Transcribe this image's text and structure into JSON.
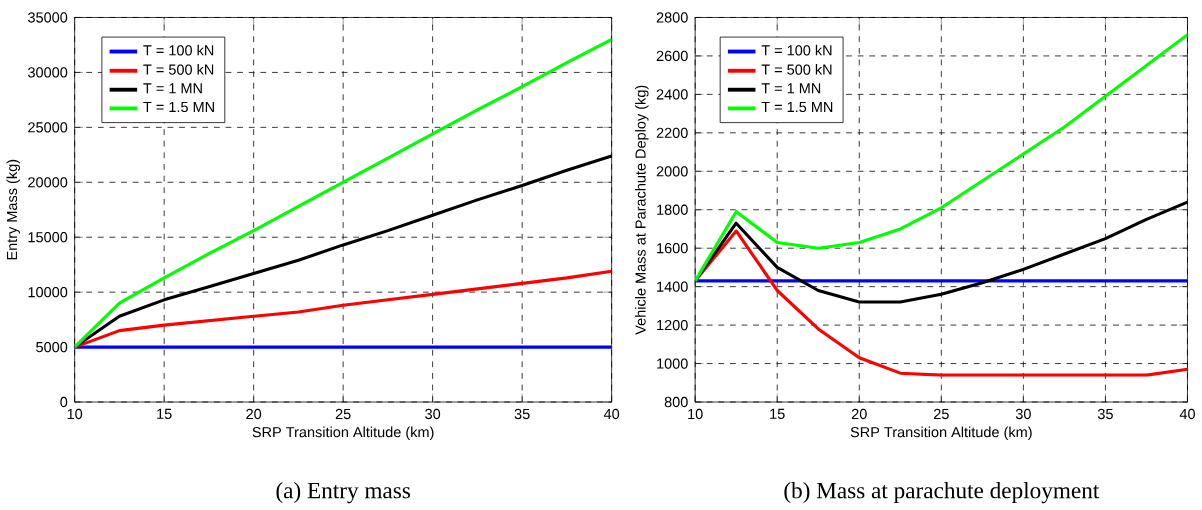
{
  "chart_data": [
    {
      "type": "line",
      "title": "(a) Entry mass",
      "xlabel": "SRP Transition Altitude (km)",
      "ylabel": "Entry Mass (kg)",
      "x": [
        10,
        12.5,
        15,
        17.5,
        20,
        22.5,
        25,
        27.5,
        30,
        32.5,
        35,
        37.5,
        40
      ],
      "series": [
        {
          "name": "T = 100 kN",
          "color": "#0000ff",
          "values": [
            5000,
            5000,
            5000,
            5000,
            5000,
            5000,
            5000,
            5000,
            5000,
            5000,
            5000,
            5000,
            5000
          ]
        },
        {
          "name": "T = 500 kN",
          "color": "#ff0000",
          "values": [
            5000,
            6500,
            7000,
            7400,
            7800,
            8200,
            8800,
            9300,
            9800,
            10300,
            10800,
            11300,
            11900
          ]
        },
        {
          "name": "T = 1 MN",
          "color": "#000000",
          "values": [
            5000,
            7800,
            9300,
            10500,
            11700,
            12900,
            14300,
            15600,
            17000,
            18400,
            19700,
            21100,
            22400
          ]
        },
        {
          "name": "T = 1.5 MN",
          "color": "#00ff00",
          "values": [
            5000,
            9000,
            11300,
            13500,
            15600,
            17800,
            20000,
            22200,
            24400,
            26600,
            28700,
            30900,
            33000
          ]
        }
      ],
      "xlim": [
        10,
        40
      ],
      "xticks": [
        10,
        15,
        20,
        25,
        30,
        35,
        40
      ],
      "ylim": [
        0,
        35000
      ],
      "yticks": [
        0,
        5000,
        10000,
        15000,
        20000,
        25000,
        30000,
        35000
      ],
      "grid": true,
      "legend": "top left",
      "line_style": "solid"
    },
    {
      "type": "line",
      "title": "(b) Mass at parachute deployment",
      "xlabel": "SRP Transition Altitude (km)",
      "ylabel": "Vehicle Mass at Parachute Deploy (kg)",
      "x": [
        10,
        12.5,
        15,
        17.5,
        20,
        22.5,
        25,
        27.5,
        30,
        32.5,
        35,
        37.5,
        40
      ],
      "series": [
        {
          "name": "T = 100 kN",
          "color": "#0000ff",
          "values": [
            1430,
            1430,
            1430,
            1430,
            1430,
            1430,
            1430,
            1430,
            1430,
            1430,
            1430,
            1430,
            1430
          ]
        },
        {
          "name": "T = 500 kN",
          "color": "#ff0000",
          "values": [
            1430,
            1690,
            1380,
            1180,
            1030,
            950,
            940,
            940,
            940,
            940,
            940,
            940,
            970
          ]
        },
        {
          "name": "T = 1 MN",
          "color": "#000000",
          "values": [
            1430,
            1730,
            1500,
            1380,
            1320,
            1320,
            1360,
            1420,
            1490,
            1570,
            1650,
            1750,
            1840
          ]
        },
        {
          "name": "T = 1.5 MN",
          "color": "#00ff00",
          "values": [
            1430,
            1790,
            1630,
            1600,
            1630,
            1700,
            1810,
            1950,
            2090,
            2230,
            2390,
            2550,
            2710
          ]
        }
      ],
      "xlim": [
        10,
        40
      ],
      "xticks": [
        10,
        15,
        20,
        25,
        30,
        35,
        40
      ],
      "ylim": [
        800,
        2800
      ],
      "yticks": [
        800,
        1000,
        1200,
        1400,
        1600,
        1800,
        2000,
        2200,
        2400,
        2600,
        2800
      ],
      "grid": true,
      "legend": "top left",
      "line_style": "solid"
    }
  ]
}
